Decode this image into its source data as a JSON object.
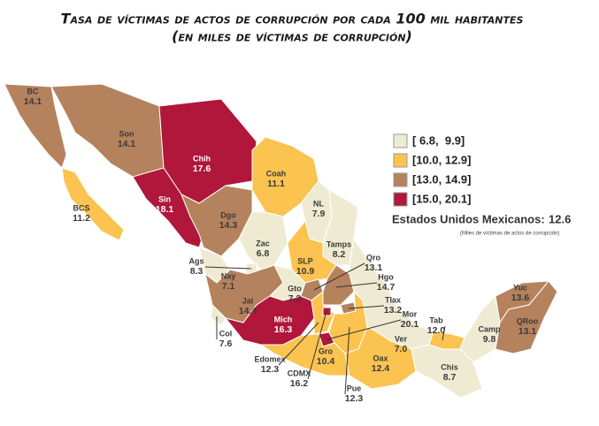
{
  "map": {
    "title": "Tasa de víctimas de actos de corrupción por cada 100 mil habitantes",
    "subtitle": "(en miles de víctimas de corrupción)",
    "legend": [
      {
        "label": "[ 6.8,  9.9]",
        "min": 6.8,
        "max": 9.9,
        "color": "#efebd3"
      },
      {
        "label": "[10.0, 12.9]",
        "min": 10.0,
        "max": 12.9,
        "color": "#fbc34f"
      },
      {
        "label": "[13.0, 14.9]",
        "min": 13.0,
        "max": 14.9,
        "color": "#b5825e"
      },
      {
        "label": "[15.0, 20.1]",
        "min": 15.0,
        "max": 20.1,
        "color": "#b0173a"
      }
    ],
    "national": {
      "label": "Estados Unidos Mexicanos:",
      "value": 12.6,
      "note": "(Miles de víctimas de actos de corrupción)"
    },
    "states": [
      {
        "name": "BC",
        "value": 14.1
      },
      {
        "name": "BCS",
        "value": 11.2
      },
      {
        "name": "Son",
        "value": 14.1
      },
      {
        "name": "Chih",
        "value": 17.6
      },
      {
        "name": "Coah",
        "value": 11.1
      },
      {
        "name": "Sin",
        "value": 18.1
      },
      {
        "name": "Dgo",
        "value": 14.3
      },
      {
        "name": "NL",
        "value": 7.9
      },
      {
        "name": "Tamps",
        "value": 8.2
      },
      {
        "name": "Zac",
        "value": 6.8
      },
      {
        "name": "SLP",
        "value": 10.9
      },
      {
        "name": "Nay",
        "value": 7.1
      },
      {
        "name": "Ags",
        "value": 8.3
      },
      {
        "name": "Jal",
        "value": 14.4
      },
      {
        "name": "Gto",
        "value": 7.3
      },
      {
        "name": "Qro",
        "value": 13.1
      },
      {
        "name": "Hgo",
        "value": 14.7
      },
      {
        "name": "Col",
        "value": 7.6
      },
      {
        "name": "Mich",
        "value": 16.3
      },
      {
        "name": "Edomex",
        "value": 12.3
      },
      {
        "name": "CDMX",
        "value": 16.2
      },
      {
        "name": "Mor",
        "value": 20.1
      },
      {
        "name": "Tlax",
        "value": 13.2
      },
      {
        "name": "Pue",
        "value": 12.3
      },
      {
        "name": "Gro",
        "value": 10.4
      },
      {
        "name": "Ver",
        "value": {
          "value": 7,
          "label": "7.0"
        }
      },
      {
        "name": "Oax",
        "value": 12.4
      },
      {
        "name": "Tab",
        "value": {
          "value": 12,
          "label": "12.0"
        }
      },
      {
        "name": "Chis",
        "value": 8.7
      },
      {
        "name": "Camp",
        "value": 9.8
      },
      {
        "name": "Yuc",
        "value": 13.6
      },
      {
        "name": "QRoo",
        "value": 13.1
      }
    ]
  }
}
